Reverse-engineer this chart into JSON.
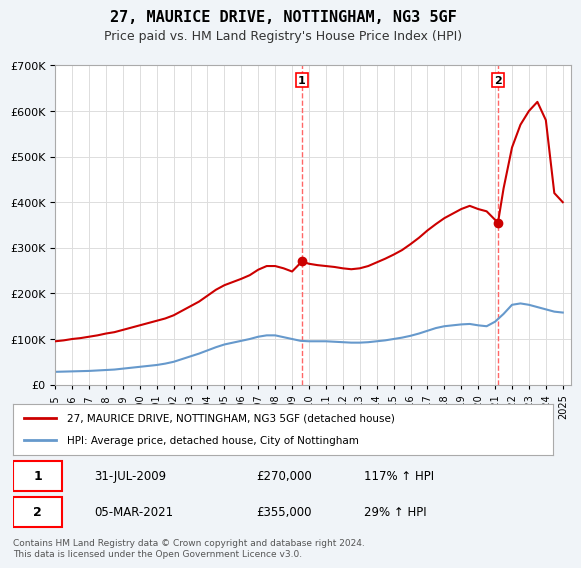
{
  "title": "27, MAURICE DRIVE, NOTTINGHAM, NG3 5GF",
  "subtitle": "Price paid vs. HM Land Registry's House Price Index (HPI)",
  "legend_line1": "27, MAURICE DRIVE, NOTTINGHAM, NG3 5GF (detached house)",
  "legend_line2": "HPI: Average price, detached house, City of Nottingham",
  "footnote": "Contains HM Land Registry data © Crown copyright and database right 2024.\nThis data is licensed under the Open Government Licence v3.0.",
  "sale1_date": "31-JUL-2009",
  "sale1_price": 270000,
  "sale1_label": "117% ↑ HPI",
  "sale2_date": "05-MAR-2021",
  "sale2_price": 355000,
  "sale2_label": "29% ↑ HPI",
  "sale1_x": 2009.58,
  "sale2_x": 2021.17,
  "red_color": "#cc0000",
  "blue_color": "#6699cc",
  "dashed_color": "#ff6666",
  "background_color": "#f0f4f8",
  "plot_bg": "#ffffff",
  "ylim": [
    0,
    700000
  ],
  "xlim": [
    1995,
    2025.5
  ],
  "yticks": [
    0,
    100000,
    200000,
    300000,
    400000,
    500000,
    600000,
    700000
  ],
  "xticks": [
    1995,
    1996,
    1997,
    1998,
    1999,
    2000,
    2001,
    2002,
    2003,
    2004,
    2005,
    2006,
    2007,
    2008,
    2009,
    2010,
    2011,
    2012,
    2013,
    2014,
    2015,
    2016,
    2017,
    2018,
    2019,
    2020,
    2021,
    2022,
    2023,
    2024,
    2025
  ],
  "hpi_x": [
    1995,
    1995.5,
    1996,
    1996.5,
    1997,
    1997.5,
    1998,
    1998.5,
    1999,
    1999.5,
    2000,
    2000.5,
    2001,
    2001.5,
    2002,
    2002.5,
    2003,
    2003.5,
    2004,
    2004.5,
    2005,
    2005.5,
    2006,
    2006.5,
    2007,
    2007.5,
    2008,
    2008.5,
    2009,
    2009.5,
    2010,
    2010.5,
    2011,
    2011.5,
    2012,
    2012.5,
    2013,
    2013.5,
    2014,
    2014.5,
    2015,
    2015.5,
    2016,
    2016.5,
    2017,
    2017.5,
    2018,
    2018.5,
    2019,
    2019.5,
    2020,
    2020.5,
    2021,
    2021.5,
    2022,
    2022.5,
    2023,
    2023.5,
    2024,
    2024.5,
    2025
  ],
  "hpi_y": [
    28000,
    28500,
    29000,
    29500,
    30000,
    31000,
    32000,
    33000,
    35000,
    37000,
    39000,
    41000,
    43000,
    46000,
    50000,
    56000,
    62000,
    68000,
    75000,
    82000,
    88000,
    92000,
    96000,
    100000,
    105000,
    108000,
    108000,
    104000,
    100000,
    96000,
    95000,
    95000,
    95000,
    94000,
    93000,
    92000,
    92000,
    93000,
    95000,
    97000,
    100000,
    103000,
    107000,
    112000,
    118000,
    124000,
    128000,
    130000,
    132000,
    133000,
    130000,
    128000,
    138000,
    155000,
    175000,
    178000,
    175000,
    170000,
    165000,
    160000,
    158000
  ],
  "red_x": [
    1995,
    1995.5,
    1996,
    1996.5,
    1997,
    1997.5,
    1998,
    1998.5,
    1999,
    1999.5,
    2000,
    2000.5,
    2001,
    2001.5,
    2002,
    2002.5,
    2003,
    2003.5,
    2004,
    2004.5,
    2005,
    2005.5,
    2006,
    2006.5,
    2007,
    2007.5,
    2008,
    2008.5,
    2009,
    2009.58,
    2010,
    2010.5,
    2011,
    2011.5,
    2012,
    2012.5,
    2013,
    2013.5,
    2014,
    2014.5,
    2015,
    2015.5,
    2016,
    2016.5,
    2017,
    2017.5,
    2018,
    2018.5,
    2019,
    2019.5,
    2020,
    2020.5,
    2021.17,
    2021.5,
    2022,
    2022.5,
    2023,
    2023.5,
    2024,
    2024.5,
    2025
  ],
  "red_y": [
    95000,
    97000,
    100000,
    102000,
    105000,
    108000,
    112000,
    115000,
    120000,
    125000,
    130000,
    135000,
    140000,
    145000,
    152000,
    162000,
    172000,
    182000,
    195000,
    208000,
    218000,
    225000,
    232000,
    240000,
    252000,
    260000,
    260000,
    255000,
    248000,
    270000,
    265000,
    262000,
    260000,
    258000,
    255000,
    253000,
    255000,
    260000,
    268000,
    276000,
    285000,
    295000,
    308000,
    322000,
    338000,
    352000,
    365000,
    375000,
    385000,
    392000,
    385000,
    380000,
    355000,
    430000,
    520000,
    570000,
    600000,
    620000,
    580000,
    420000,
    400000
  ]
}
